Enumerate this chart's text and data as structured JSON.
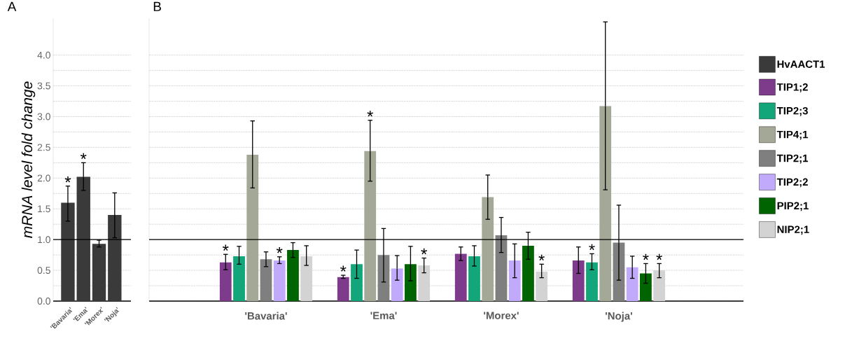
{
  "chart_data": [
    {
      "type": "bar",
      "title": "A",
      "ylabel": "mRNA level fold change",
      "categories": [
        "'Bavaria'",
        "'Ema'",
        "'Morex'",
        "'Noja'"
      ],
      "series": [
        {
          "name": "HvAACT1",
          "color": "#3a3a3a",
          "values": [
            1.6,
            2.02,
            0.93,
            1.4
          ],
          "errors": [
            [
              1.3,
              1.87
            ],
            [
              1.8,
              2.25
            ],
            [
              0.88,
              0.99
            ],
            [
              1.03,
              1.76
            ]
          ],
          "value_labels": [
            "*",
            "*",
            null,
            null
          ]
        }
      ],
      "ylim": [
        0,
        4.6
      ],
      "yticks": [
        {
          "value": 0,
          "label": "0.0"
        },
        {
          "value": 0.25,
          "label": null
        },
        0.5,
        {
          "value": 0.75,
          "label": null
        },
        {
          "value": 1,
          "label": "1.0"
        },
        {
          "value": 1.25,
          "label": null
        },
        1.5,
        {
          "value": 1.75,
          "label": null
        },
        {
          "value": 2,
          "label": "2.0"
        },
        {
          "value": 2.25,
          "label": null
        },
        2.5,
        {
          "value": 2.75,
          "label": null
        },
        {
          "value": 3,
          "label": "3.0"
        },
        {
          "value": 3.25,
          "label": null
        },
        3.5,
        {
          "value": 3.75,
          "label": null
        },
        {
          "value": 4,
          "label": "4.0"
        }
      ],
      "grid": "y",
      "legend": "right",
      "ref_lines": [
        {
          "axis": "y",
          "value": 1
        }
      ]
    },
    {
      "type": "bar",
      "title": "B",
      "categories": [
        "'Bavaria'",
        "'Ema'",
        "'Morex'",
        "'Noja'"
      ],
      "series": [
        {
          "name": "TIP1;2",
          "color": "#7f3b8b",
          "values": [
            0.63,
            0.39,
            0.77,
            0.66
          ],
          "errors": [
            [
              0.51,
              0.76
            ],
            [
              0.37,
              0.42
            ],
            [
              0.66,
              0.88
            ],
            [
              0.45,
              0.88
            ]
          ],
          "value_labels": [
            "*",
            "*",
            null,
            null
          ]
        },
        {
          "name": "TIP2;3",
          "color": "#13a67a",
          "values": [
            0.73,
            0.6,
            0.73,
            0.63
          ],
          "errors": [
            [
              0.6,
              0.89
            ],
            [
              0.37,
              0.83
            ],
            [
              0.57,
              0.9
            ],
            [
              0.51,
              0.77
            ]
          ],
          "value_labels": [
            null,
            null,
            null,
            "*"
          ]
        },
        {
          "name": "TIP4;1",
          "color": "#a4a896",
          "values": [
            2.38,
            2.44,
            1.69,
            3.17
          ],
          "errors": [
            [
              1.84,
              2.93
            ],
            [
              1.95,
              2.94
            ],
            [
              1.33,
              2.05
            ],
            [
              1.81,
              4.54
            ]
          ],
          "value_labels": [
            null,
            "*",
            null,
            null
          ]
        },
        {
          "name": "TIP2;1",
          "color": "#7f7f7f",
          "values": [
            0.68,
            0.75,
            1.07,
            0.95
          ],
          "errors": [
            [
              0.56,
              0.8
            ],
            [
              0.31,
              1.18
            ],
            [
              0.79,
              1.36
            ],
            [
              0.34,
              1.56
            ]
          ]
        },
        {
          "name": "TIP2;2",
          "color": "#c1a9fb",
          "values": [
            0.66,
            0.53,
            0.66,
            0.55
          ],
          "errors": [
            [
              0.61,
              0.72
            ],
            [
              0.34,
              0.74
            ],
            [
              0.38,
              0.93
            ],
            [
              0.37,
              0.73
            ]
          ],
          "value_labels": [
            "*",
            null,
            null,
            null
          ]
        },
        {
          "name": "PIP2;1",
          "color": "#006400",
          "values": [
            0.83,
            0.6,
            0.9,
            0.45
          ],
          "errors": [
            [
              0.71,
              0.95
            ],
            [
              0.33,
              0.89
            ],
            [
              0.68,
              1.12
            ],
            [
              0.29,
              0.61
            ]
          ],
          "value_labels": [
            null,
            null,
            null,
            "*"
          ]
        },
        {
          "name": "NIP2;1",
          "color": "#d3d3d3",
          "values": [
            0.73,
            0.58,
            0.48,
            0.5
          ],
          "errors": [
            [
              0.58,
              0.9
            ],
            [
              0.46,
              0.7
            ],
            [
              0.38,
              0.6
            ],
            [
              0.38,
              0.61
            ]
          ],
          "value_labels": [
            null,
            "*",
            "*",
            "*"
          ]
        }
      ],
      "ylim": [
        0,
        4.6
      ],
      "yticks": [
        0,
        {
          "value": 0.25,
          "label": null
        },
        0.5,
        {
          "value": 0.75,
          "label": null
        },
        1.0,
        {
          "value": 1.25,
          "label": null
        },
        1.5,
        {
          "value": 1.75,
          "label": null
        },
        2.0,
        {
          "value": 2.25,
          "label": null
        },
        2.5,
        {
          "value": 2.75,
          "label": null
        },
        3.0,
        {
          "value": 3.25,
          "label": null
        },
        3.5,
        {
          "value": 3.75,
          "label": null
        },
        4.0
      ],
      "tick_labels": "x",
      "grid": "y",
      "legend": "right",
      "ref_lines": [
        {
          "axis": "y",
          "value": 1
        }
      ]
    }
  ]
}
